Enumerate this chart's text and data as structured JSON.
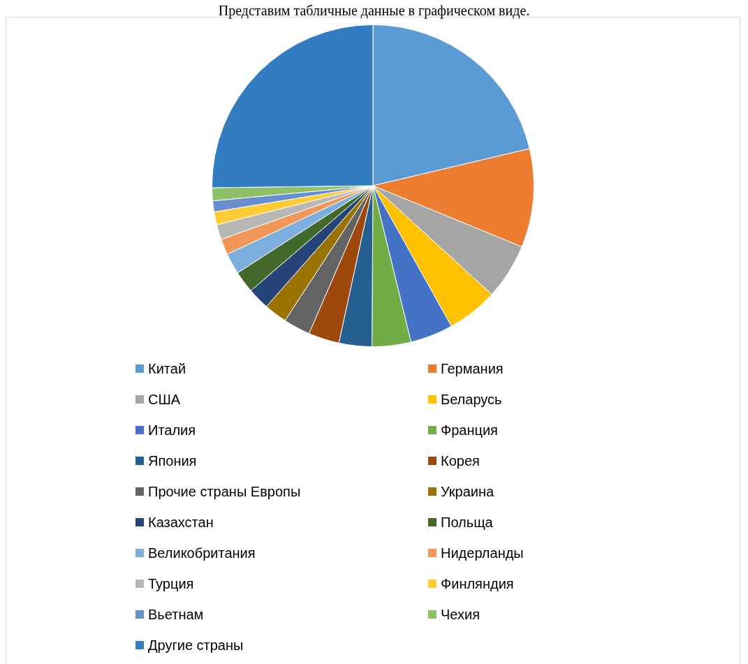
{
  "chart_data": {
    "type": "pie",
    "title": "Представим табличные данные в графическом виде.",
    "categories": [
      "Китай",
      "Германия",
      "США",
      "Беларусь",
      "Италия",
      "Франция",
      "Япония",
      "Корея",
      "Прочие страны Европы",
      "Украина",
      "Казахстан",
      "Польща",
      "Великобритания",
      "Нидерланды",
      "Турция",
      "Финляндия",
      "Вьетнам",
      "Чехия",
      "Другие страны"
    ],
    "values": [
      21.3,
      9.9,
      5.6,
      5.1,
      4.3,
      3.9,
      3.3,
      3.1,
      2.7,
      2.3,
      2.2,
      2.2,
      2.1,
      1.6,
      1.5,
      1.3,
      1.1,
      1.3,
      25.2
    ],
    "colors": [
      "#5b9bd5",
      "#ed7d31",
      "#a5a5a5",
      "#ffc000",
      "#4472c4",
      "#70ad47",
      "#255e91",
      "#9e480e",
      "#636363",
      "#997300",
      "#264478",
      "#43682b",
      "#7cafdd",
      "#f1975a",
      "#b7b7b7",
      "#ffcd33",
      "#698ed0",
      "#8cc168",
      "#327dc2"
    ],
    "legend": "bottom"
  }
}
